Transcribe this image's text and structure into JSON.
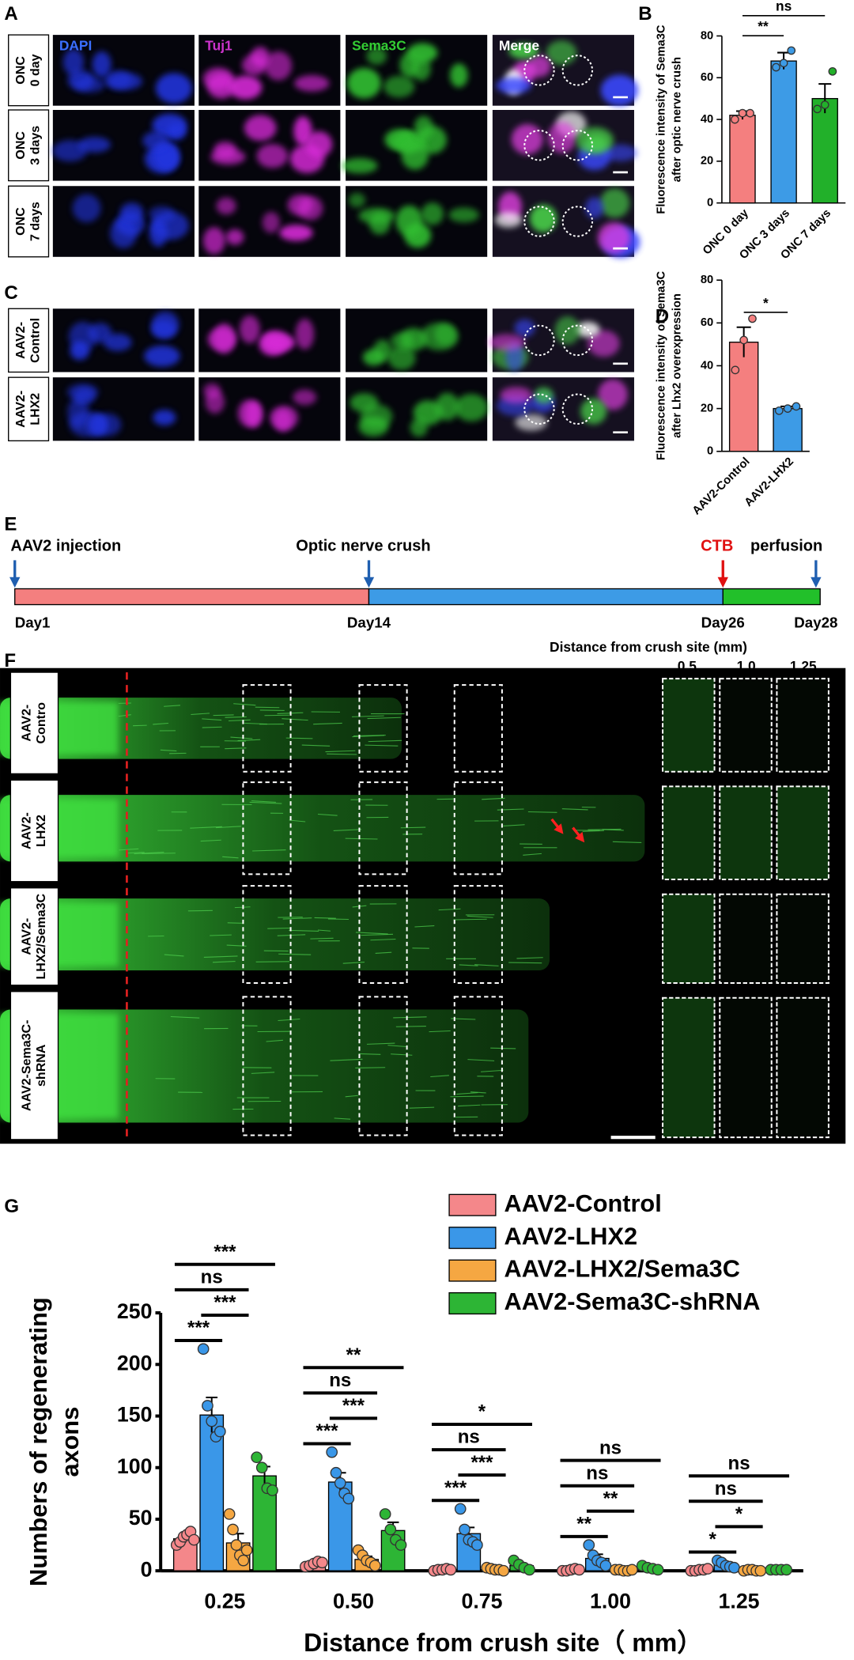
{
  "panel_labels": [
    "A",
    "B",
    "C",
    "D",
    "E",
    "F",
    "G"
  ],
  "panel_a": {
    "channels": [
      "DAPI",
      "Tuj1",
      "Sema3C",
      "Merge"
    ],
    "rows": [
      [
        "ONC",
        "0 day"
      ],
      [
        "ONC",
        "3 days"
      ],
      [
        "ONC",
        "7 days"
      ]
    ]
  },
  "panel_c": {
    "rows": [
      [
        "AAV2-",
        "Control"
      ],
      [
        "AAV2-",
        "LHX2"
      ]
    ]
  },
  "timeline": {
    "events": [
      {
        "label": "AAV2 injection",
        "day": "Day1"
      },
      {
        "label": "Optic nerve crush",
        "day": "Day14"
      },
      {
        "label": "CTB",
        "day": "Day26"
      },
      {
        "label": "perfusion",
        "day": "Day28"
      }
    ]
  },
  "panel_f": {
    "distance_title": "Distance from crush site (mm)",
    "distances": [
      "0.5",
      "1.0",
      "1.25"
    ],
    "rows": [
      [
        "AAV2-",
        "Contro"
      ],
      [
        "AAV2-",
        "LHX2"
      ],
      [
        "AAV2-",
        "LHX2/Sema3C"
      ],
      [
        "AAV2-Sema3C-",
        "shRNA"
      ]
    ]
  },
  "chart_data": [
    {
      "type": "bar",
      "ylabel": [
        "Fluorescence intensity of Sema3C",
        "after optic nerve crush"
      ],
      "categories": [
        "ONC 0 day",
        "ONC 3 days",
        "ONC 7 days"
      ],
      "values": [
        42,
        68,
        50
      ],
      "errors": [
        2,
        4,
        7
      ],
      "points": [
        [
          40,
          43,
          43
        ],
        [
          65,
          67,
          73
        ],
        [
          45,
          47,
          63
        ]
      ],
      "colors": [
        "#f47f7f",
        "#3d9be6",
        "#22b02a"
      ],
      "ylim": [
        0,
        80
      ],
      "yticks": [
        0,
        20,
        40,
        60,
        80
      ],
      "comparisons": [
        {
          "between": [
            "ONC 0 day",
            "ONC 3 days"
          ],
          "label": "**"
        },
        {
          "between": [
            "ONC 0 day",
            "ONC 7 days"
          ],
          "label": "ns"
        }
      ]
    },
    {
      "type": "bar",
      "ylabel": [
        "Fluorescence intensity of Sema3C",
        "after Lhx2 overexpression"
      ],
      "categories": [
        "AAV2-Control",
        "AAV2-LHX2"
      ],
      "values": [
        51,
        20
      ],
      "errors": [
        7,
        1
      ],
      "points": [
        [
          38,
          52,
          62
        ],
        [
          19,
          20,
          21
        ]
      ],
      "colors": [
        "#f47f7f",
        "#3d9be6"
      ],
      "ylim": [
        0,
        80
      ],
      "yticks": [
        0,
        20,
        40,
        60,
        80
      ],
      "comparisons": [
        {
          "between": [
            "AAV2-Control",
            "AAV2-LHX2"
          ],
          "label": "*"
        }
      ]
    },
    {
      "type": "bar",
      "xlabel": "Distance from crush site（ mm）",
      "ylabel": [
        "Numbers of regenerating",
        "axons"
      ],
      "categories": [
        "0.25",
        "0.50",
        "0.75",
        "1.00",
        "1.25"
      ],
      "legend": "top-right",
      "ylim": [
        0,
        250
      ],
      "yticks": [
        0,
        50,
        100,
        150,
        200,
        250
      ],
      "series": [
        {
          "name": "AAV2-Control",
          "color": "#f4878a",
          "values": [
            31,
            7,
            1,
            1,
            1
          ],
          "errors": [
            4,
            1,
            0,
            0,
            0
          ],
          "points": [
            [
              25,
              28,
              33,
              35,
              38,
              30
            ],
            [
              4,
              5,
              7,
              9,
              8
            ],
            [
              0,
              1,
              1,
              2,
              1
            ],
            [
              0,
              0,
              1,
              2,
              1
            ],
            [
              0,
              0,
              1,
              1,
              2
            ]
          ]
        },
        {
          "name": "AAV2-LHX2",
          "color": "#3a97e8",
          "values": [
            151,
            86,
            36,
            12,
            6
          ],
          "errors": [
            17,
            9,
            6,
            4,
            2
          ],
          "points": [
            [
              215,
              160,
              145,
              130,
              135
            ],
            [
              115,
              95,
              85,
              75,
              70
            ],
            [
              60,
              40,
              30,
              28,
              25
            ],
            [
              25,
              15,
              10,
              8,
              5
            ],
            [
              10,
              8,
              5,
              4,
              3
            ]
          ]
        },
        {
          "name": "AAV2-LHX2/Sema3C",
          "color": "#f5a742",
          "values": [
            27,
            11,
            2,
            1,
            1
          ],
          "errors": [
            9,
            3,
            1,
            0,
            0
          ],
          "points": [
            [
              55,
              40,
              25,
              15,
              10,
              20
            ],
            [
              20,
              15,
              10,
              8,
              5
            ],
            [
              3,
              2,
              1,
              1,
              0
            ],
            [
              1,
              1,
              0,
              0,
              1
            ],
            [
              0,
              1,
              1,
              0,
              0
            ]
          ]
        },
        {
          "name": "AAV2-Sema3C-shRNA",
          "color": "#2db535",
          "values": [
            92,
            39,
            5,
            3,
            1
          ],
          "errors": [
            9,
            8,
            2,
            1,
            0
          ],
          "points": [
            [
              110,
              100,
              80,
              78
            ],
            [
              55,
              40,
              30,
              25
            ],
            [
              10,
              6,
              3,
              1
            ],
            [
              5,
              3,
              2,
              1
            ],
            [
              1,
              1,
              1,
              1
            ]
          ]
        }
      ],
      "comparisons": [
        {
          "between": [
            "AAV2-Control",
            "AAV2-LHX2"
          ],
          "labels": [
            "***",
            "***",
            "***",
            "**",
            "*"
          ]
        },
        {
          "between": [
            "AAV2-LHX2",
            "AAV2-LHX2/Sema3C"
          ],
          "labels": [
            "***",
            "***",
            "***",
            "**",
            "*"
          ]
        },
        {
          "between": [
            "AAV2-Control",
            "AAV2-LHX2/Sema3C"
          ],
          "labels": [
            "ns",
            "ns",
            "ns",
            "ns",
            "ns"
          ]
        },
        {
          "between": [
            "AAV2-Control",
            "AAV2-Sema3C-shRNA"
          ],
          "labels": [
            "***",
            "**",
            "*",
            "ns",
            "ns"
          ]
        }
      ]
    }
  ]
}
